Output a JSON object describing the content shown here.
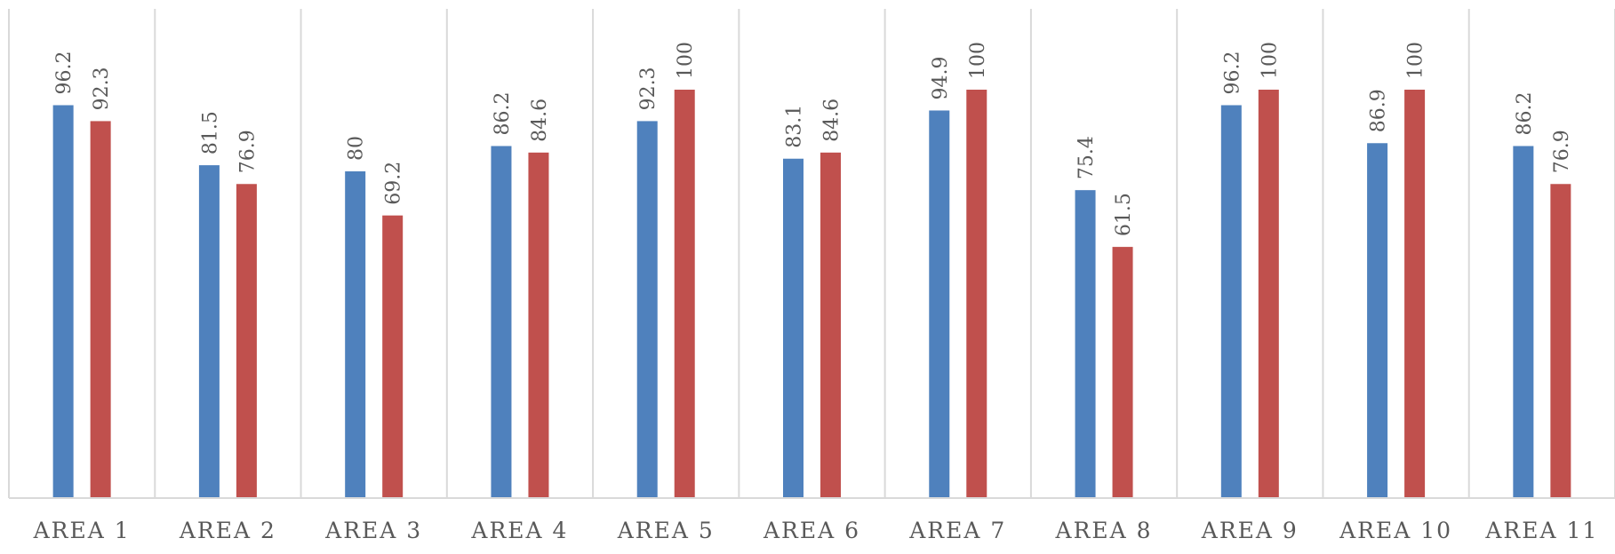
{
  "chart_data": {
    "type": "bar",
    "categories": [
      "AREA 1",
      "AREA 2",
      "AREA 3",
      "AREA 4",
      "AREA 5",
      "AREA 6",
      "AREA 7",
      "AREA 8",
      "AREA 9",
      "AREA 10",
      "AREA 11"
    ],
    "series": [
      {
        "values": [
          96.2,
          81.5,
          80,
          86.2,
          92.3,
          83.1,
          94.9,
          75.4,
          96.2,
          86.9,
          86.2
        ],
        "color": "#4f81bd"
      },
      {
        "values": [
          92.3,
          76.9,
          69.2,
          84.6,
          100,
          84.6,
          100,
          61.5,
          100,
          100,
          76.9
        ],
        "color": "#c0504d"
      }
    ],
    "ylim": [
      0,
      100
    ],
    "data_labels": true,
    "grid": "vertical-category-separators",
    "legend": "none",
    "title": "",
    "xlabel": "",
    "ylabel": ""
  }
}
